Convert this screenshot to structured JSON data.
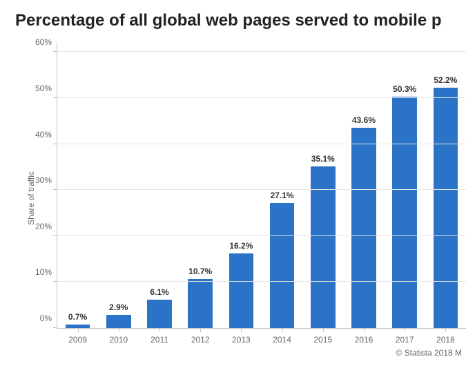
{
  "title": "Percentage of all global web pages served to mobile p",
  "y_axis_title": "Share of traffic",
  "footer": "© Statista 2018 M",
  "chart": {
    "type": "bar",
    "categories": [
      "2009",
      "2010",
      "2011",
      "2012",
      "2013",
      "2014",
      "2015",
      "2016",
      "2017",
      "2018"
    ],
    "values": [
      0.7,
      2.9,
      6.1,
      10.7,
      16.2,
      27.1,
      35.1,
      43.6,
      50.3,
      52.2
    ],
    "value_labels": [
      "0.7%",
      "2.9%",
      "6.1%",
      "10.7%",
      "16.2%",
      "27.1%",
      "35.1%",
      "43.6%",
      "50.3%",
      "52.2%"
    ],
    "bar_color": "#2b73c7",
    "background_color": "#ffffff",
    "grid_color": "#e6e6e6",
    "axis_color": "#c0c0c0",
    "y_ticks": [
      0,
      10,
      20,
      30,
      40,
      50,
      60
    ],
    "y_tick_labels": [
      "0%",
      "10%",
      "20%",
      "30%",
      "40%",
      "50%",
      "60%"
    ],
    "ylim": [
      0,
      62
    ],
    "title_fontsize": 24,
    "label_fontsize": 12,
    "bar_width_ratio": 0.6,
    "data_label_fontsize": 12,
    "data_label_weight": "700"
  }
}
